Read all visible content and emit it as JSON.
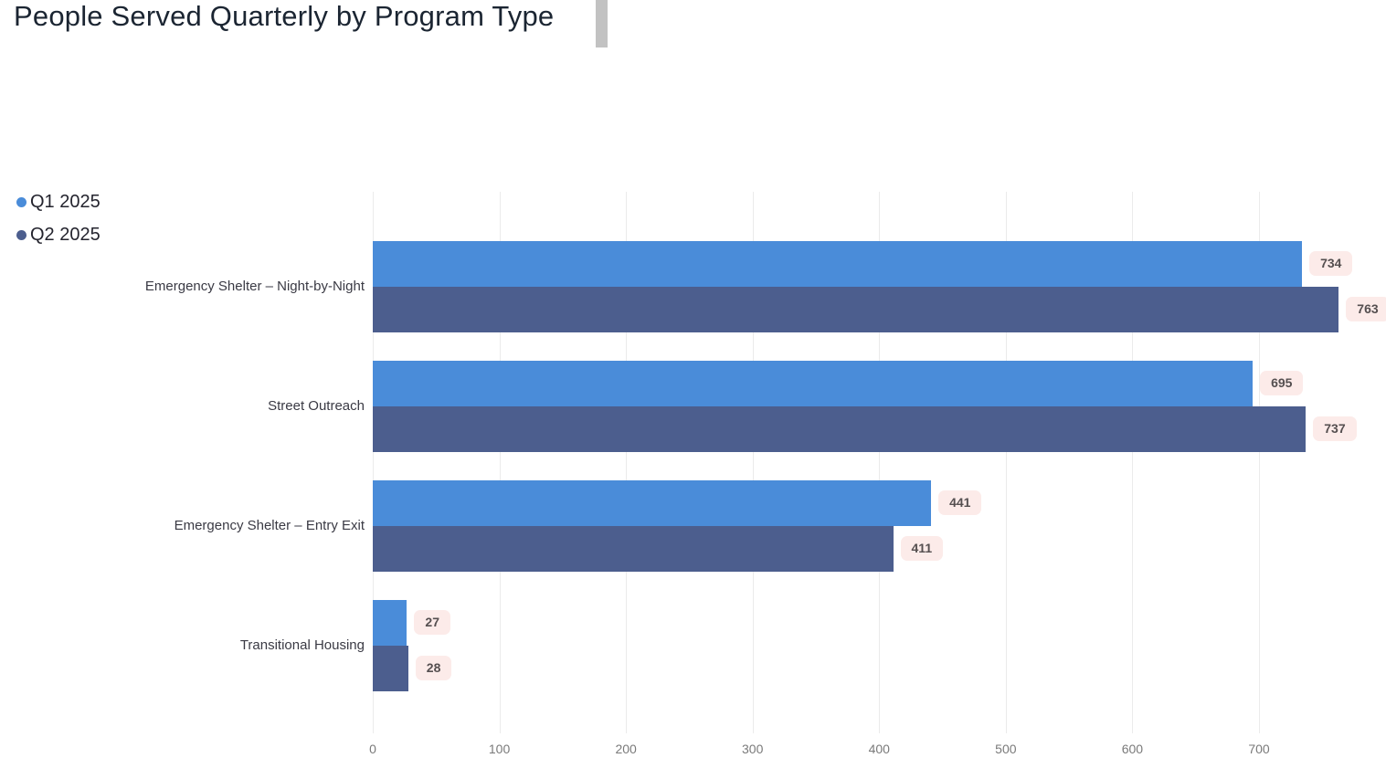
{
  "page": {
    "title": "People Served Quarterly by Program Type"
  },
  "chart_data": {
    "type": "bar",
    "orientation": "horizontal",
    "title": "People Served Quarterly by Program Type",
    "categories": [
      "Emergency Shelter – Night-by-Night",
      "Street Outreach",
      "Emergency Shelter – Entry Exit",
      "Transitional Housing"
    ],
    "series": [
      {
        "name": "Q1 2025",
        "color": "#4a8cd9",
        "values": [
          734,
          695,
          441,
          27
        ]
      },
      {
        "name": "Q2 2025",
        "color": "#4c5e8e",
        "values": [
          763,
          737,
          411,
          28
        ]
      }
    ],
    "x_ticks": [
      0,
      100,
      200,
      300,
      400,
      500,
      600,
      700
    ],
    "xlim": [
      0,
      783
    ],
    "xlabel": "",
    "ylabel": "",
    "grid": true,
    "legend_position": "top-left",
    "data_labels": true,
    "data_label_bg": "#fcebe9",
    "data_label_text_color": "#554f50",
    "gridline_color": "#ebebeb",
    "tick_label_color": "#7a7a7a"
  }
}
